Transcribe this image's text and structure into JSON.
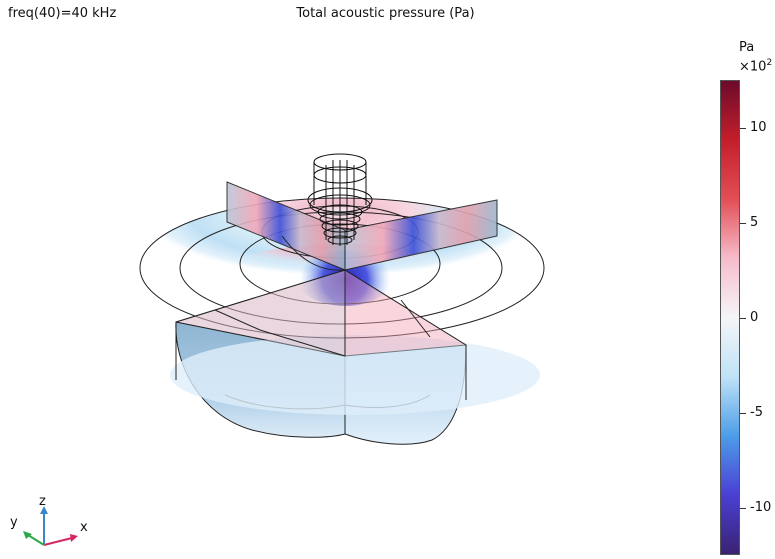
{
  "header": {
    "parameter": "freq(40)=40 kHz",
    "title": "Total acoustic pressure (Pa)"
  },
  "colorbar": {
    "unit": "Pa",
    "multiplier_base": "×10",
    "multiplier_exp": "2",
    "range": [
      -12.5,
      12.5
    ],
    "ticks": [
      {
        "value": 10,
        "label": "10"
      },
      {
        "value": 5,
        "label": "5"
      },
      {
        "value": 0,
        "label": "0"
      },
      {
        "value": -5,
        "label": "-5"
      },
      {
        "value": -10,
        "label": "-10"
      }
    ],
    "colors": [
      "#3a2372",
      "#4a3fd4",
      "#4d9de8",
      "#bfe2f6",
      "#f5f5f8",
      "#f7bccb",
      "#e24f55",
      "#c41e2c",
      "#6c0b2a"
    ]
  },
  "axes_triad": {
    "x_label": "x",
    "y_label": "y",
    "z_label": "z",
    "x_color": "#d6275e",
    "y_color": "#2aa84a",
    "z_color": "#3b86c8"
  }
}
